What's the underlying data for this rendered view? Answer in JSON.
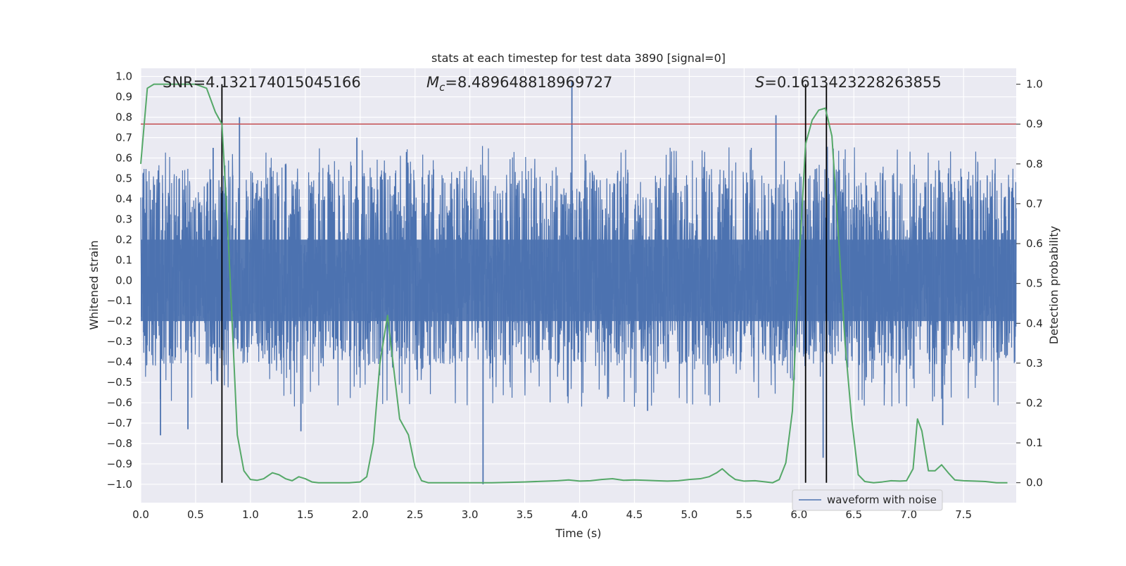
{
  "chart_data": {
    "type": "line",
    "title": "stats at each timestep for test data 3890 [signal=0]",
    "xlabel": "Time (s)",
    "ylabel": "Whitened strain",
    "y2label": "Detection probability",
    "xlim": [
      0.0,
      7.98
    ],
    "ylim": [
      -1.09,
      1.04
    ],
    "y2lim": [
      -0.05,
      1.04
    ],
    "grid": true,
    "x_ticks": [
      "0.0",
      "0.5",
      "1.0",
      "1.5",
      "2.0",
      "2.5",
      "3.0",
      "3.5",
      "4.0",
      "4.5",
      "5.0",
      "5.5",
      "6.0",
      "6.5",
      "7.0",
      "7.5"
    ],
    "y_ticks": [
      "1.0",
      "0.9",
      "0.8",
      "0.7",
      "0.6",
      "0.5",
      "0.4",
      "0.3",
      "0.2",
      "0.1",
      "0.0",
      "-0.1",
      "-0.2",
      "-0.3",
      "-0.4",
      "-0.5",
      "-0.6",
      "-0.7",
      "-0.8",
      "-0.9",
      "-1.0"
    ],
    "y2_ticks": [
      "1.0",
      "0.9",
      "0.8",
      "0.7",
      "0.6",
      "0.5",
      "0.4",
      "0.3",
      "0.2",
      "0.1",
      "0.0"
    ],
    "annotations": {
      "snr": "SNR=4.132174015045166",
      "mc_symbol": "M",
      "mc_sub": "c",
      "mc_value": "=8.489648818969727",
      "s_symbol": "S",
      "s_value": "=0.1613423228263855"
    },
    "threshold_y2": 0.9,
    "vertical_lines_x": [
      0.74,
      6.06,
      6.25
    ],
    "series": [
      {
        "name": "waveform with noise",
        "color": "#4c72b0",
        "style": "noise",
        "core_amplitude": 0.18,
        "typical_envelope": [
          -0.42,
          0.55
        ],
        "notable_spikes": [
          {
            "x": 0.18,
            "y": -0.76
          },
          {
            "x": 0.43,
            "y": -0.73
          },
          {
            "x": 0.66,
            "y": 0.65
          },
          {
            "x": 0.9,
            "y": 0.8
          },
          {
            "x": 1.46,
            "y": -0.74
          },
          {
            "x": 1.97,
            "y": 0.7
          },
          {
            "x": 3.12,
            "y": -1.0
          },
          {
            "x": 3.93,
            "y": 0.98
          },
          {
            "x": 4.62,
            "y": -0.64
          },
          {
            "x": 5.79,
            "y": 0.81
          },
          {
            "x": 6.22,
            "y": -0.87
          },
          {
            "x": 7.31,
            "y": -0.71
          }
        ]
      },
      {
        "name": "detection probability",
        "color": "#55a868",
        "axis": "y2",
        "x": [
          0.0,
          0.06,
          0.12,
          0.2,
          0.3,
          0.4,
          0.5,
          0.6,
          0.68,
          0.74,
          0.8,
          0.88,
          0.94,
          1.0,
          1.06,
          1.12,
          1.2,
          1.26,
          1.32,
          1.38,
          1.44,
          1.5,
          1.56,
          1.62,
          1.7,
          1.8,
          1.9,
          2.0,
          2.06,
          2.12,
          2.18,
          2.25,
          2.3,
          2.36,
          2.44,
          2.5,
          2.56,
          2.62,
          2.7,
          2.8,
          3.0,
          3.2,
          3.5,
          3.8,
          3.9,
          4.0,
          4.1,
          4.2,
          4.3,
          4.4,
          4.5,
          4.6,
          4.7,
          4.8,
          4.9,
          5.0,
          5.1,
          5.18,
          5.25,
          5.3,
          5.36,
          5.42,
          5.5,
          5.6,
          5.7,
          5.76,
          5.82,
          5.88,
          5.94,
          6.0,
          6.06,
          6.12,
          6.18,
          6.24,
          6.3,
          6.36,
          6.42,
          6.48,
          6.54,
          6.6,
          6.68,
          6.76,
          6.84,
          6.92,
          6.98,
          7.04,
          7.08,
          7.12,
          7.18,
          7.24,
          7.3,
          7.36,
          7.42,
          7.5,
          7.6,
          7.7,
          7.8,
          7.9
        ],
        "values": [
          0.8,
          0.99,
          1.0,
          1.0,
          1.0,
          1.0,
          1.0,
          0.99,
          0.93,
          0.9,
          0.6,
          0.12,
          0.03,
          0.008,
          0.006,
          0.01,
          0.025,
          0.02,
          0.01,
          0.005,
          0.015,
          0.01,
          0.002,
          0.0,
          0.0,
          0.0,
          0.0,
          0.002,
          0.015,
          0.1,
          0.3,
          0.42,
          0.3,
          0.16,
          0.12,
          0.04,
          0.005,
          0.0,
          0.0,
          0.0,
          0.0,
          0.0,
          0.002,
          0.005,
          0.007,
          0.004,
          0.005,
          0.008,
          0.01,
          0.006,
          0.007,
          0.006,
          0.005,
          0.004,
          0.005,
          0.008,
          0.01,
          0.015,
          0.025,
          0.035,
          0.02,
          0.008,
          0.004,
          0.005,
          0.002,
          0.0,
          0.008,
          0.05,
          0.18,
          0.55,
          0.85,
          0.91,
          0.935,
          0.94,
          0.87,
          0.62,
          0.35,
          0.16,
          0.02,
          0.003,
          0.0,
          0.002,
          0.005,
          0.004,
          0.005,
          0.035,
          0.16,
          0.13,
          0.03,
          0.03,
          0.045,
          0.025,
          0.007,
          0.005,
          0.004,
          0.003,
          0.0,
          0.0
        ]
      }
    ],
    "legend": {
      "position": "lower-center-right",
      "entries": [
        "waveform with noise"
      ]
    }
  }
}
